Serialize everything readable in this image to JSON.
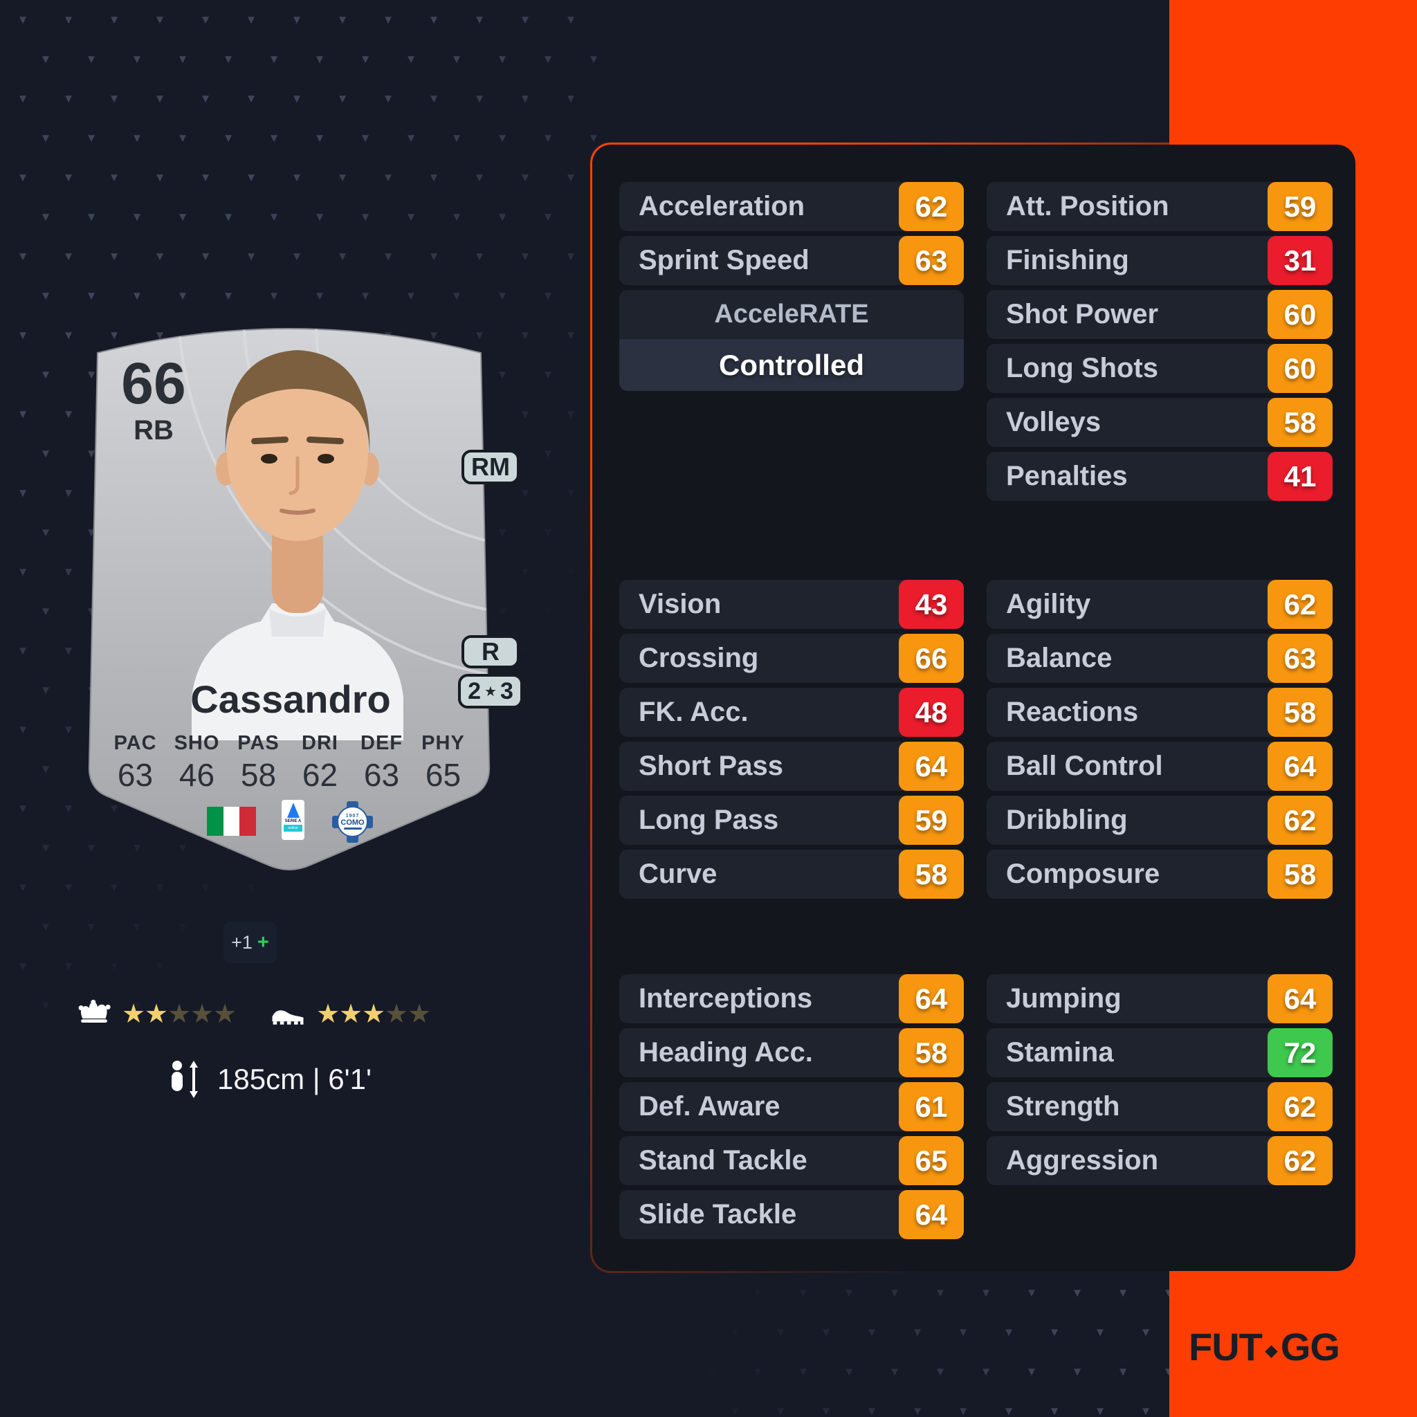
{
  "brand": {
    "part1": "FUT",
    "part2": "GG"
  },
  "decor": {
    "triangle": "▼"
  },
  "colors": {
    "accent_band": "#FE3D02",
    "stat_orange": "#F8970F",
    "stat_red": "#EB1C2C",
    "stat_green": "#3EC94E",
    "flag_green": "#009246",
    "flag_white": "#FFFFFF",
    "flag_red": "#CE2B37"
  },
  "card": {
    "rating": "66",
    "position": "RB",
    "name": "Cassandro",
    "alt_position": "RM",
    "preferred_foot": "R",
    "skill_moves": "2",
    "weak_foot": "3",
    "star_glyph": "★",
    "face_stats": [
      {
        "label": "PAC",
        "value": "63"
      },
      {
        "label": "SHO",
        "value": "46"
      },
      {
        "label": "PAS",
        "value": "58"
      },
      {
        "label": "DRI",
        "value": "62"
      },
      {
        "label": "DEF",
        "value": "63"
      },
      {
        "label": "PHY",
        "value": "65"
      }
    ],
    "league_logo_text": "SERIE A",
    "league_bar_text": "enilive",
    "club_badge_year": "1907",
    "club_badge_name": "COMO",
    "skill_stars": [
      "on",
      "on",
      "off",
      "off",
      "off"
    ],
    "weak_stars": [
      "on",
      "on",
      "on",
      "off",
      "off"
    ]
  },
  "boost": {
    "text": "+1",
    "plus": "+"
  },
  "height": {
    "text": "185cm | 6'1'"
  },
  "panel": {
    "pace": [
      {
        "label": "Acceleration",
        "value": 62,
        "tier": "orange"
      },
      {
        "label": "Sprint Speed",
        "value": 63,
        "tier": "orange"
      }
    ],
    "accelerate": {
      "label": "AcceleRATE",
      "value": "Controlled"
    },
    "shooting": [
      {
        "label": "Att. Position",
        "value": 59,
        "tier": "orange"
      },
      {
        "label": "Finishing",
        "value": 31,
        "tier": "red"
      },
      {
        "label": "Shot Power",
        "value": 60,
        "tier": "orange"
      },
      {
        "label": "Long Shots",
        "value": 60,
        "tier": "orange"
      },
      {
        "label": "Volleys",
        "value": 58,
        "tier": "orange"
      },
      {
        "label": "Penalties",
        "value": 41,
        "tier": "red"
      }
    ],
    "passing": [
      {
        "label": "Vision",
        "value": 43,
        "tier": "red"
      },
      {
        "label": "Crossing",
        "value": 66,
        "tier": "orange"
      },
      {
        "label": "FK. Acc.",
        "value": 48,
        "tier": "red"
      },
      {
        "label": "Short Pass",
        "value": 64,
        "tier": "orange"
      },
      {
        "label": "Long Pass",
        "value": 59,
        "tier": "orange"
      },
      {
        "label": "Curve",
        "value": 58,
        "tier": "orange"
      }
    ],
    "dribbling": [
      {
        "label": "Agility",
        "value": 62,
        "tier": "orange"
      },
      {
        "label": "Balance",
        "value": 63,
        "tier": "orange"
      },
      {
        "label": "Reactions",
        "value": 58,
        "tier": "orange"
      },
      {
        "label": "Ball Control",
        "value": 64,
        "tier": "orange"
      },
      {
        "label": "Dribbling",
        "value": 62,
        "tier": "orange"
      },
      {
        "label": "Composure",
        "value": 58,
        "tier": "orange"
      }
    ],
    "defending": [
      {
        "label": "Interceptions",
        "value": 64,
        "tier": "orange"
      },
      {
        "label": "Heading Acc.",
        "value": 58,
        "tier": "orange"
      },
      {
        "label": "Def. Aware",
        "value": 61,
        "tier": "orange"
      },
      {
        "label": "Stand Tackle",
        "value": 65,
        "tier": "orange"
      },
      {
        "label": "Slide Tackle",
        "value": 64,
        "tier": "orange"
      }
    ],
    "physical": [
      {
        "label": "Jumping",
        "value": 64,
        "tier": "orange"
      },
      {
        "label": "Stamina",
        "value": 72,
        "tier": "green"
      },
      {
        "label": "Strength",
        "value": 62,
        "tier": "orange"
      },
      {
        "label": "Aggression",
        "value": 62,
        "tier": "orange"
      }
    ]
  }
}
